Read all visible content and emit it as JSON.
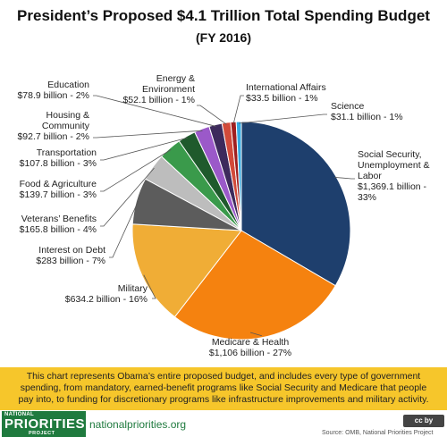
{
  "chart_data": {
    "type": "pie",
    "title": "President’s Proposed $4.1 Trillion Total Spending Budget",
    "subtitle": "(FY 2016)",
    "slices": [
      {
        "label_lines": [
          "Social Security,",
          "Unemployment &",
          "Labor",
          "$1,369.1 billion -",
          "33%"
        ],
        "value": 1369.1,
        "percent": 33,
        "color": "#1e3f6d"
      },
      {
        "label_lines": [
          "Medicare & Health",
          "$1,106 billion - 27%"
        ],
        "value": 1106,
        "percent": 27,
        "color": "#f5820f"
      },
      {
        "label_lines": [
          "Military",
          "$634.2 billion - 16%"
        ],
        "value": 634.2,
        "percent": 16,
        "color": "#f0ad36"
      },
      {
        "label_lines": [
          "Interest on Debt",
          "$283 billion - 7%"
        ],
        "value": 283,
        "percent": 7,
        "color": "#5c5c5c"
      },
      {
        "label_lines": [
          "Veterans’ Benefits",
          "$165.8 billion - 4%"
        ],
        "value": 165.8,
        "percent": 4,
        "color": "#bdbdbd"
      },
      {
        "label_lines": [
          "Food & Agriculture",
          "$139.7 billion - 3%"
        ],
        "value": 139.7,
        "percent": 3,
        "color": "#3a9a4b"
      },
      {
        "label_lines": [
          "Transportation",
          "$107.8 billion - 3%"
        ],
        "value": 107.8,
        "percent": 3,
        "color": "#1f5a2c"
      },
      {
        "label_lines": [
          "Housing &",
          "Community",
          "$92.7 billion - 2%"
        ],
        "value": 92.7,
        "percent": 2,
        "color": "#9b59c9"
      },
      {
        "label_lines": [
          "Education",
          "$78.9 billion - 2%"
        ],
        "value": 78.9,
        "percent": 2,
        "color": "#3d2a5c"
      },
      {
        "label_lines": [
          "Energy &",
          "Environment",
          "$52.1 billion - 1%"
        ],
        "value": 52.1,
        "percent": 1,
        "color": "#d24a3a"
      },
      {
        "label_lines": [
          "International  Affairs",
          "$33.5 billion - 1%"
        ],
        "value": 33.5,
        "percent": 1,
        "color": "#a01f1f"
      },
      {
        "label_lines": [
          "Science",
          "$31.1 billion - 1%"
        ],
        "value": 31.1,
        "percent": 1,
        "color": "#35a9e0"
      }
    ]
  },
  "caption": "This chart represents Obama’s entire proposed budget, and includes every type of government spending, from mandatory, earned-benefit programs like Social Security and Medicare that people pay into, to funding for discretionary programs like infrastructure improvements and military activity.",
  "footer": {
    "logo_top": "NATIONAL",
    "logo_main": "PRIORITIES",
    "logo_bottom": "PROJECT",
    "site": "nationalpriorities.org",
    "license_badge": "cc by",
    "source": "Source: OMB, National Priorities Project"
  }
}
